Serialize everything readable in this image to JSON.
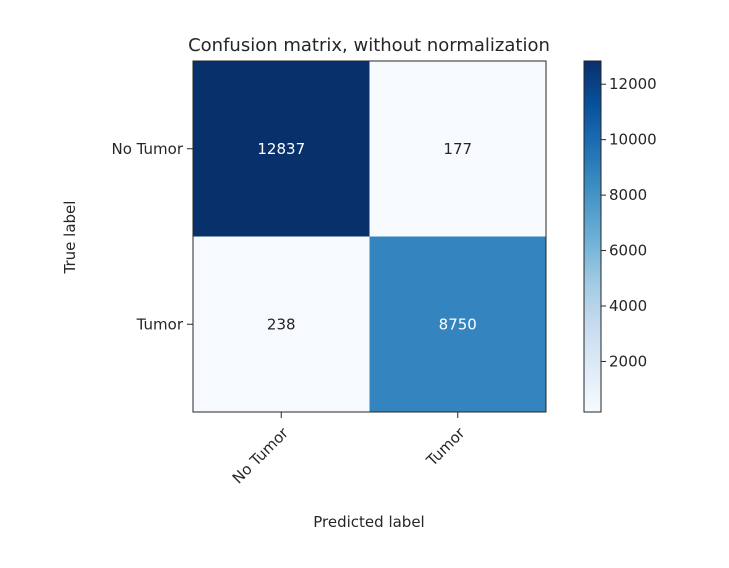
{
  "chart_data": {
    "type": "heatmap",
    "title": "Confusion matrix, without normalization",
    "xlabel": "Predicted label",
    "ylabel": "True label",
    "x_categories": [
      "No Tumor",
      "Tumor"
    ],
    "y_categories": [
      "No Tumor",
      "Tumor"
    ],
    "values": [
      [
        12837,
        177
      ],
      [
        238,
        8750
      ]
    ],
    "colormap": "Blues",
    "colorbar": {
      "min": 177,
      "max": 12837,
      "ticks": [
        2000,
        4000,
        6000,
        8000,
        10000,
        12000
      ]
    },
    "grid": false,
    "colors": {
      "light": "#f7fbff",
      "dark": "#08306b",
      "text_dark": "#262626",
      "text_light": "#ffffff"
    }
  }
}
